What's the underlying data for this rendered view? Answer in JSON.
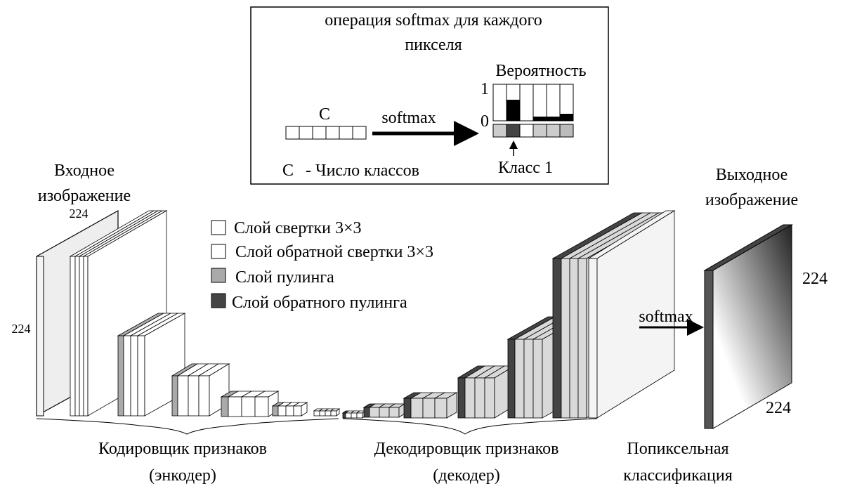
{
  "softmax_box": {
    "title": [
      "операция softmax для каждого",
      "пикселя"
    ],
    "channels": "C",
    "arrow_label": "softmax",
    "probability": "Вероятность",
    "axis_top": "1",
    "axis_bottom": "0",
    "class_label": "Класс 1",
    "legend_symbol": "C",
    "legend_text": "- Число классов"
  },
  "input": {
    "label": [
      "Входное",
      "изображение"
    ],
    "width": "224",
    "height": "224"
  },
  "legend": [
    "Слой свертки 3×3",
    "Слой обратной свертки 3×3",
    "Слой пулинга",
    "Слой обратного пулинга"
  ],
  "output": {
    "label": [
      "Выходное",
      "изображение"
    ],
    "height": "224",
    "width": "224",
    "arrow_label": "softmax"
  },
  "encoder": [
    "Кодировщик признаков",
    "(энкодер)"
  ],
  "decoder": [
    "Декодировщик признаков",
    "(декодер)"
  ],
  "classification": [
    "Попиксельная",
    "классификация"
  ]
}
